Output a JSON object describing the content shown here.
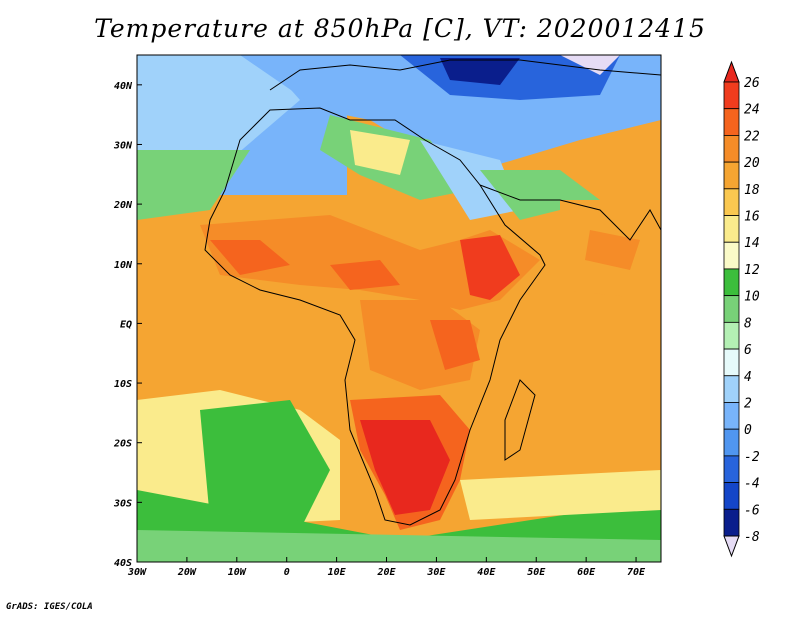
{
  "title": "Temperature at 850hPa [C], VT: 2020012415",
  "credit": "GrADS: IGES/COLA",
  "map": {
    "lon_range": [
      -30,
      75
    ],
    "lat_range": [
      -40,
      45
    ],
    "x_ticks": [
      {
        "value": -30,
        "label": "30W"
      },
      {
        "value": -20,
        "label": "20W"
      },
      {
        "value": -10,
        "label": "10W"
      },
      {
        "value": 0,
        "label": "0"
      },
      {
        "value": 10,
        "label": "10E"
      },
      {
        "value": 20,
        "label": "20E"
      },
      {
        "value": 30,
        "label": "30E"
      },
      {
        "value": 40,
        "label": "40E"
      },
      {
        "value": 50,
        "label": "50E"
      },
      {
        "value": 60,
        "label": "60E"
      },
      {
        "value": 70,
        "label": "70E"
      }
    ],
    "y_ticks": [
      {
        "value": 40,
        "label": "40N"
      },
      {
        "value": 30,
        "label": "30N"
      },
      {
        "value": 20,
        "label": "20N"
      },
      {
        "value": 10,
        "label": "10N"
      },
      {
        "value": 0,
        "label": "EQ"
      },
      {
        "value": -10,
        "label": "10S"
      },
      {
        "value": -20,
        "label": "20S"
      },
      {
        "value": -30,
        "label": "30S"
      },
      {
        "value": -40,
        "label": "40S"
      }
    ]
  },
  "colorbar": {
    "levels": [
      26,
      24,
      22,
      20,
      18,
      16,
      14,
      12,
      10,
      8,
      6,
      4,
      2,
      0,
      -2,
      -4,
      -6,
      -8
    ],
    "colors": {
      "above_26": "#e8281e",
      "24_26": "#f03c1e",
      "22_24": "#f5641e",
      "20_22": "#f58c28",
      "18_20": "#f5a532",
      "16_18": "#fac850",
      "14_16": "#faeb8c",
      "12_14": "#fafac8",
      "10_12": "#3cbe3c",
      "8_10": "#78d278",
      "6_8": "#b4f0b4",
      "4_6": "#e6fafa",
      "2_4": "#a0d2fa",
      "0_2": "#78b4fa",
      "m2_0": "#5096f0",
      "m4_m2": "#2864dc",
      "m6_m4": "#1446c8",
      "m8_m6": "#0a1e8c",
      "below_m8": "#e6dcf5"
    }
  }
}
